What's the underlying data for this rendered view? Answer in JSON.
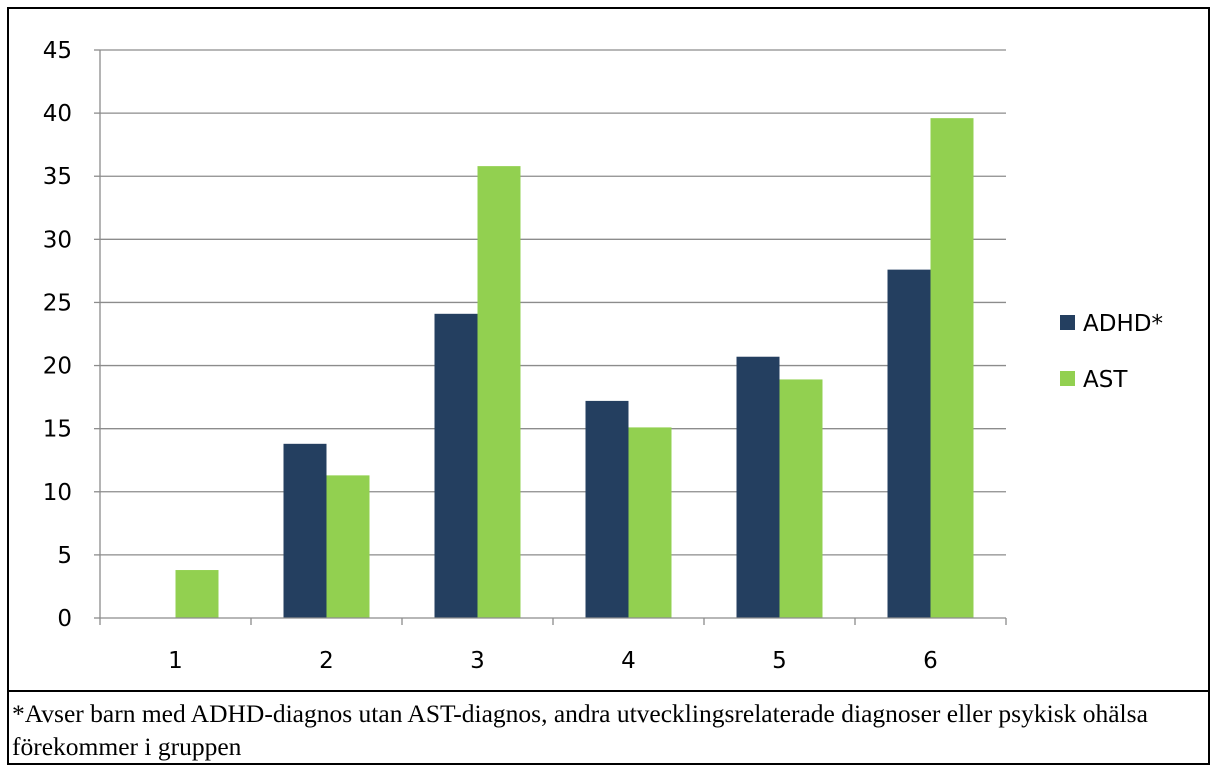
{
  "chart_data": {
    "type": "bar",
    "categories": [
      "1",
      "2",
      "3",
      "4",
      "5",
      "6"
    ],
    "series": [
      {
        "name": "ADHD*",
        "color": "#243f60",
        "values": [
          0,
          13.8,
          24.1,
          17.2,
          20.7,
          27.6
        ]
      },
      {
        "name": "AST",
        "color": "#92d050",
        "values": [
          3.8,
          11.3,
          35.8,
          15.1,
          18.9,
          39.6
        ]
      }
    ],
    "title": "",
    "xlabel": "",
    "ylabel": "",
    "ylim": [
      0,
      45
    ],
    "yticks": [
      0,
      5,
      10,
      15,
      20,
      25,
      30,
      35,
      40,
      45
    ],
    "grid": true,
    "legend_position": "right"
  },
  "footnote": "*Avser barn med ADHD-diagnos utan AST-diagnos, andra utvecklingsrelaterade diagnoser eller psykisk ohälsa förekommer i gruppen"
}
